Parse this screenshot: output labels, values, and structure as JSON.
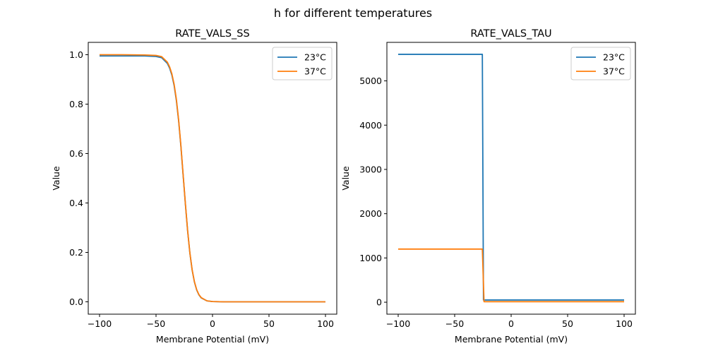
{
  "figure": {
    "suptitle": "h for different temperatures"
  },
  "chart_data": [
    {
      "type": "line",
      "title": "RATE_VALS_SS",
      "xlabel": "Membrane Potential (mV)",
      "ylabel": "Value",
      "xlim": [
        -110,
        110
      ],
      "ylim": [
        -0.05,
        1.05
      ],
      "xticks": [
        -100,
        -50,
        0,
        50,
        100
      ],
      "xtick_labels": [
        "−100",
        "−50",
        "0",
        "50",
        "100"
      ],
      "yticks": [
        0.0,
        0.2,
        0.4,
        0.6,
        0.8,
        1.0
      ],
      "ytick_labels": [
        "0.0",
        "0.2",
        "0.4",
        "0.6",
        "0.8",
        "1.0"
      ],
      "grid": false,
      "legend": {
        "placement": "upper right",
        "entries": [
          "23°C",
          "37°C"
        ]
      },
      "series": [
        {
          "name": "23°C",
          "color": "#1f77b4",
          "x": [
            -100,
            -80,
            -60,
            -50,
            -45,
            -40,
            -38,
            -36,
            -34,
            -32,
            -30,
            -28,
            -26,
            -25,
            -24,
            -22,
            -20,
            -18,
            -16,
            -14,
            -12,
            -10,
            -5,
            0,
            10,
            25,
            50,
            75,
            100
          ],
          "y": [
            0.995,
            0.995,
            0.995,
            0.993,
            0.988,
            0.965,
            0.946,
            0.918,
            0.876,
            0.815,
            0.733,
            0.63,
            0.512,
            0.454,
            0.395,
            0.286,
            0.196,
            0.128,
            0.08,
            0.048,
            0.028,
            0.016,
            0.004,
            0.001,
            0.0,
            0.0,
            0.0,
            0.0,
            0.0
          ]
        },
        {
          "name": "37°C",
          "color": "#ff7f0e",
          "x": [
            -100,
            -80,
            -60,
            -50,
            -45,
            -40,
            -38,
            -36,
            -34,
            -32,
            -30,
            -28,
            -26,
            -25,
            -24,
            -22,
            -20,
            -18,
            -16,
            -14,
            -12,
            -10,
            -5,
            0,
            10,
            25,
            50,
            75,
            100
          ],
          "y": [
            1.0,
            1.0,
            0.999,
            0.997,
            0.992,
            0.97,
            0.951,
            0.923,
            0.881,
            0.82,
            0.737,
            0.633,
            0.514,
            0.456,
            0.397,
            0.287,
            0.197,
            0.129,
            0.081,
            0.049,
            0.029,
            0.017,
            0.004,
            0.001,
            0.0,
            0.0,
            0.0,
            0.0,
            0.0
          ]
        }
      ]
    },
    {
      "type": "line",
      "title": "RATE_VALS_TAU",
      "xlabel": "Membrane Potential (mV)",
      "ylabel": "Value",
      "xlim": [
        -110,
        110
      ],
      "ylim": [
        -270,
        5870
      ],
      "xticks": [
        -100,
        -50,
        0,
        50,
        100
      ],
      "xtick_labels": [
        "−100",
        "−50",
        "0",
        "50",
        "100"
      ],
      "yticks": [
        0,
        1000,
        2000,
        3000,
        4000,
        5000
      ],
      "ytick_labels": [
        "0",
        "1000",
        "2000",
        "3000",
        "4000",
        "5000"
      ],
      "grid": false,
      "legend": {
        "placement": "upper right",
        "entries": [
          "23°C",
          "37°C"
        ]
      },
      "series": [
        {
          "name": "23°C",
          "color": "#1f77b4",
          "x": [
            -100,
            -25.5,
            -24.5,
            100
          ],
          "y": [
            5600,
            5600,
            50,
            50
          ]
        },
        {
          "name": "37°C",
          "color": "#ff7f0e",
          "x": [
            -100,
            -25.5,
            -24.0,
            100
          ],
          "y": [
            1200,
            1200,
            12,
            12
          ]
        }
      ]
    }
  ]
}
